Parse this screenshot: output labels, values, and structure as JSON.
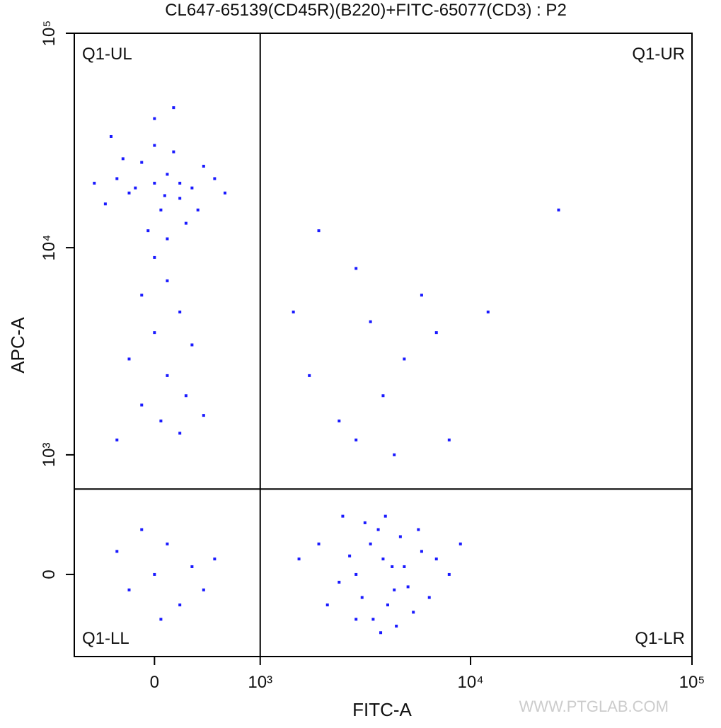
{
  "chart_data": {
    "type": "scatter",
    "title": "CL647-65139(CD45R)(B220)+FITC-65077(CD3) : P2",
    "x_label": "FITC-A",
    "y_label": "APC-A",
    "xscale": "biexponential",
    "yscale": "biexponential",
    "xlim": [
      -700,
      100000
    ],
    "ylim": [
      -600,
      100000
    ],
    "xticks": [
      0,
      {
        "value": 1000,
        "label": "10³"
      },
      {
        "value": 10000,
        "label": "10⁴"
      },
      {
        "value": 100000,
        "label": "10⁵"
      }
    ],
    "yticks": [
      0,
      {
        "value": 1000,
        "label": "10³"
      },
      {
        "value": 10000,
        "label": "10⁴"
      },
      {
        "value": 100000,
        "label": "10⁵"
      }
    ],
    "gate": {
      "x": 1000,
      "y": 630
    },
    "quadrants": {
      "upper_left": "Q1-UL",
      "upper_right": "Q1-UR",
      "lower_left": "Q1-LL",
      "lower_right": "Q1-LR"
    },
    "watermark": "WWW.PTGLAB.COM",
    "color": "#1a1aff",
    "x": [
      -200,
      0,
      100,
      200,
      -100,
      300,
      50,
      -300,
      150,
      250,
      -50,
      400,
      -400,
      0,
      100,
      200,
      -150,
      350,
      -250,
      80,
      500,
      -500,
      0,
      100,
      -100,
      200,
      0,
      300,
      -200,
      100,
      250,
      -100,
      50,
      200,
      -300,
      400,
      0,
      150,
      -350,
      600,
      3000,
      4000,
      4500,
      3500,
      5000,
      2500,
      6000,
      4200,
      3800,
      3200,
      5500,
      7000,
      2000,
      4800,
      3600,
      4400,
      2800,
      5200,
      6500,
      3300,
      4100,
      2200,
      8000,
      1600,
      9000,
      3900,
      4600,
      5800,
      2600,
      3000,
      0,
      100,
      -200,
      300,
      -100,
      200,
      500,
      -300,
      50,
      400,
      2000,
      3000,
      5000,
      4000,
      1500,
      6000,
      2500,
      8000,
      3500,
      25000,
      12000,
      4500,
      1800,
      7000,
      3000
    ],
    "y": [
      18000,
      20000,
      22000,
      17000,
      25000,
      19000,
      15000,
      21000,
      28000,
      13000,
      12000,
      24000,
      16000,
      30000,
      11000,
      20000,
      19000,
      15000,
      26000,
      17500,
      21000,
      20000,
      9000,
      7000,
      6000,
      5000,
      4000,
      3500,
      3000,
      2500,
      2000,
      1800,
      1500,
      1300,
      1200,
      1600,
      40000,
      45000,
      33000,
      18000,
      0,
      100,
      -100,
      200,
      50,
      -50,
      150,
      -200,
      300,
      -150,
      -250,
      100,
      200,
      250,
      -300,
      50,
      120,
      -80,
      -150,
      350,
      400,
      -200,
      0,
      100,
      200,
      -400,
      -350,
      300,
      400,
      -300,
      0,
      200,
      -100,
      50,
      300,
      -200,
      100,
      150,
      -300,
      -100,
      12000,
      8000,
      3000,
      2000,
      5000,
      6000,
      1500,
      1200,
      4500,
      15000,
      5000,
      1000,
      2500,
      4000,
      1200
    ]
  }
}
